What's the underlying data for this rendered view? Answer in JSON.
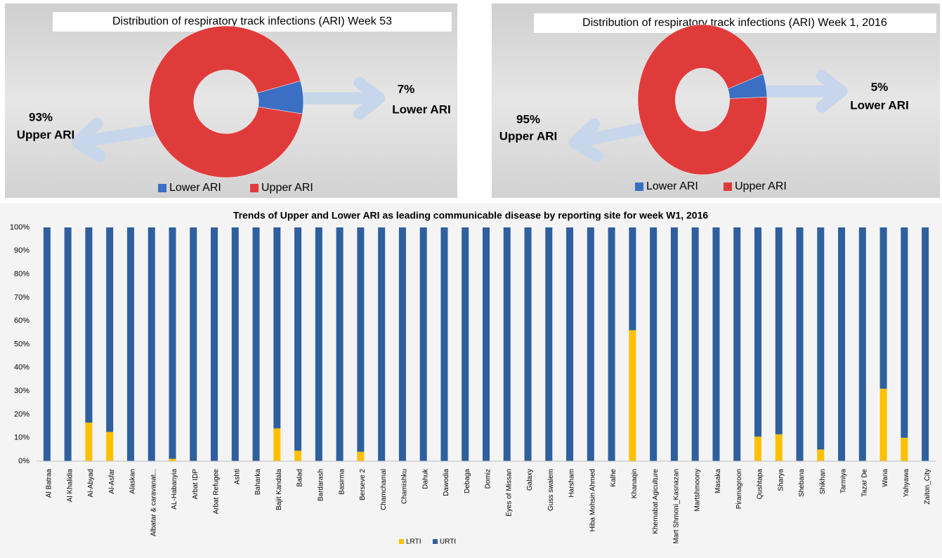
{
  "chart_data": [
    {
      "type": "pie",
      "donut": true,
      "title": "Distribution of respiratory track infections (ARI) Week 53",
      "categories": [
        "Lower ARI",
        "Upper ARI"
      ],
      "values": [
        7,
        93
      ],
      "value_labels": [
        "7%",
        "93%"
      ],
      "colors": [
        "#3a6fc4",
        "#e03b3b"
      ]
    },
    {
      "type": "pie",
      "donut": true,
      "title": "Distribution of respiratory track infections (ARI) Week 1, 2016",
      "categories": [
        "Lower ARI",
        "Upper ARI"
      ],
      "values": [
        5,
        95
      ],
      "value_labels": [
        "5%",
        "95%"
      ],
      "colors": [
        "#3a6fc4",
        "#e03b3b"
      ]
    },
    {
      "type": "bar",
      "stacked": true,
      "title": "Trends of Upper and Lower ARI as leading communicable disease by reporting site for week W1, 2016",
      "categories": [
        "Al Batraa",
        "Al Khalidia",
        "Al-Abyad",
        "Al-Asfar",
        "Alaskan",
        "Albatar & caravanat...",
        "AL-Habanyia",
        "Arbat IDP",
        "Arbat Refugee",
        "Ashti",
        "Baharka",
        "Bajit Kandala",
        "Balad",
        "Bardarash",
        "Basirma",
        "Berseve 2",
        "Chamchamal",
        "Chamishku",
        "Dahuk",
        "Dawodia",
        "Debaga",
        "Domiz",
        "Eyes of Missan",
        "Galaxy",
        "Guss swalem",
        "Harsham",
        "Hiba Mohsin Ahmed",
        "Kalhe",
        "Khanaqin",
        "Khernabat Agiculture",
        "Mart Shmoni_Kasnazan",
        "Martshmoony",
        "Masaka",
        "Piramagroon",
        "Qushtapa",
        "Sharya",
        "Shebana",
        "Shikhan",
        "Tarmiya",
        "Tazar De",
        "Wana",
        "Yahyawa",
        "Zaiton_City"
      ],
      "series": [
        {
          "name": "LRTI",
          "color": "#ffc000",
          "values": [
            0,
            0,
            16.5,
            12.5,
            0,
            0,
            1,
            0,
            0,
            0,
            0,
            14,
            4.5,
            0,
            0,
            4,
            0,
            0,
            0,
            0,
            0,
            0,
            0,
            0,
            0,
            0,
            0,
            0,
            56,
            0,
            0,
            0,
            0,
            0,
            10.5,
            11.5,
            0,
            5,
            0,
            0,
            31,
            10,
            0
          ]
        },
        {
          "name": "URTI",
          "color": "#2e5f9e",
          "values": [
            100,
            100,
            83.5,
            87.5,
            100,
            100,
            99,
            100,
            100,
            100,
            100,
            86,
            95.5,
            100,
            100,
            96,
            100,
            100,
            100,
            100,
            100,
            100,
            100,
            100,
            100,
            100,
            100,
            100,
            44,
            100,
            100,
            100,
            100,
            100,
            89.5,
            88.5,
            100,
            95,
            100,
            100,
            69,
            90,
            100
          ]
        }
      ],
      "ylim": [
        0,
        100
      ],
      "yticks": [
        {
          "value": 0,
          "label": "0%"
        },
        {
          "value": 10,
          "label": "10%"
        },
        {
          "value": 20,
          "label": "20%"
        },
        {
          "value": 30,
          "label": "30%"
        },
        {
          "value": 40,
          "label": "40%"
        },
        {
          "value": 50,
          "label": "50%"
        },
        {
          "value": 60,
          "label": "60%"
        },
        {
          "value": 70,
          "label": "70%"
        },
        {
          "value": 80,
          "label": "80%"
        },
        {
          "value": 90,
          "label": "90%"
        },
        {
          "value": 100,
          "label": "100%"
        }
      ],
      "grid": false
    }
  ]
}
